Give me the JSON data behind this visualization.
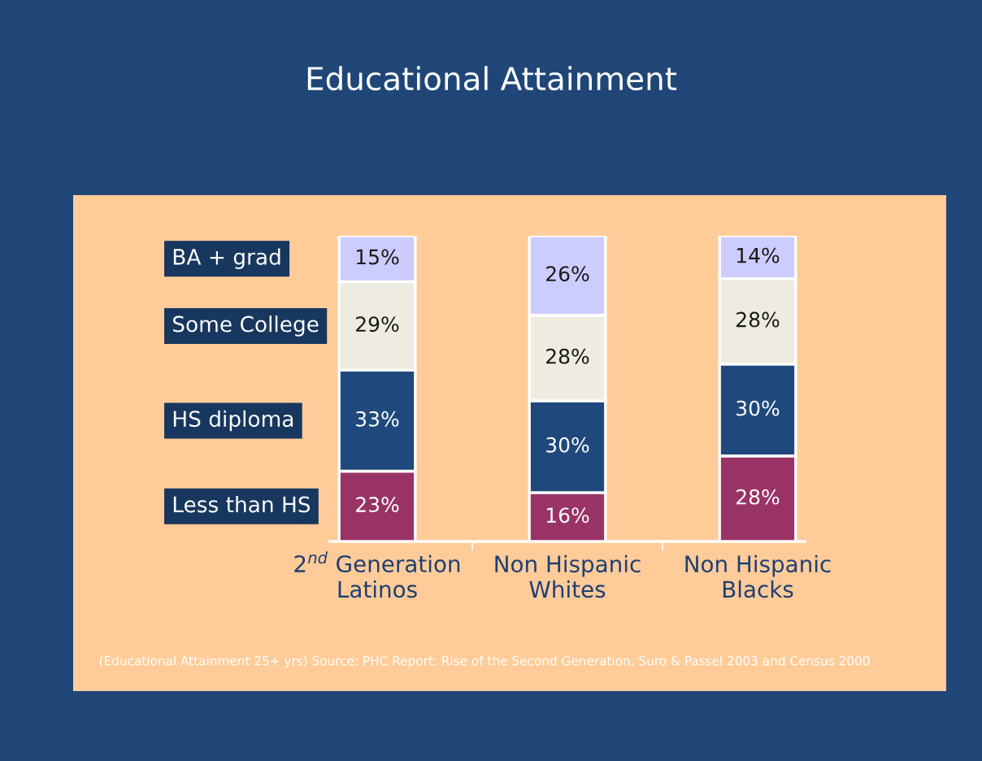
{
  "chart_data": {
    "type": "bar",
    "stacked": true,
    "title": "Educational Attainment",
    "categories": [
      "2$^{nd}$ Generation\nLatinos",
      "Non Hispanic\nWhites",
      "Non Hispanic\nBlacks"
    ],
    "series": [
      {
        "name": "Less than HS",
        "color": "#993366",
        "values": [
          23,
          16,
          28
        ],
        "value_labels": [
          "23%",
          "16%",
          "28%"
        ]
      },
      {
        "name": "HS diploma",
        "color": "#1f497d",
        "values": [
          33,
          30,
          30
        ],
        "value_labels": [
          "33%",
          "30%",
          "30%"
        ]
      },
      {
        "name": "Some College",
        "color": "#eeebe0",
        "values": [
          29,
          28,
          28
        ],
        "value_labels": [
          "29%",
          "28%",
          "28%"
        ]
      },
      {
        "name": "BA + grad",
        "color": "#ccccff",
        "values": [
          15,
          26,
          14
        ],
        "value_labels": [
          "15%",
          "26%",
          "14%"
        ]
      }
    ],
    "annotations": [
      "(Educational Attainment 25+ yrs) Source: PHC Report: Rise of the Second Generation, Suro & Passel 2003 and Census 2000"
    ]
  }
}
